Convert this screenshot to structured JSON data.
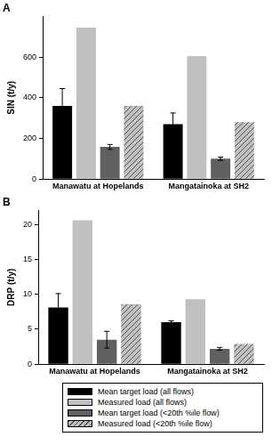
{
  "chart_data": [
    {
      "type": "bar",
      "title": "A",
      "y_label": "SIN (t/y)",
      "categories": [
        "Manawatu at Hopelands",
        "Mangatainoka at SH2"
      ],
      "ylim": [
        0,
        800
      ],
      "yticks": [
        0,
        200,
        400,
        600
      ],
      "grid": false,
      "series": [
        {
          "name": "Mean target load (all flows)",
          "color": "#000000",
          "values": [
            360,
            270
          ],
          "error": [
            85,
            55
          ]
        },
        {
          "name": "Measured load (all flows)",
          "color": "#c0c0c0",
          "values": [
            745,
            605
          ],
          "error": [
            null,
            null
          ]
        },
        {
          "name": "Mean target load (<20th %ile flow)",
          "color": "#606060",
          "values": [
            158,
            100
          ],
          "error": [
            12,
            8
          ]
        },
        {
          "name": "Measured load (<20th %ile flow)",
          "color": "#c0c0c0",
          "line_style": "hatched",
          "values": [
            360,
            280
          ],
          "error": [
            null,
            null
          ]
        }
      ]
    },
    {
      "type": "bar",
      "title": "B",
      "y_label": "DRP (t/y)",
      "categories": [
        "Manawatu at Hopelands",
        "Mangatainoka at SH2"
      ],
      "ylim": [
        0,
        22
      ],
      "yticks": [
        0,
        5,
        10,
        15,
        20
      ],
      "grid": false,
      "legend": "bottom",
      "series": [
        {
          "name": "Mean target load (all flows)",
          "color": "#000000",
          "values": [
            8.1,
            6.0
          ],
          "error": [
            2.0,
            0.2
          ]
        },
        {
          "name": "Measured load (all flows)",
          "color": "#c0c0c0",
          "values": [
            20.6,
            9.3
          ],
          "error": [
            null,
            null
          ]
        },
        {
          "name": "Mean target load (<20th %ile flow)",
          "color": "#606060",
          "values": [
            3.5,
            2.2
          ],
          "error": [
            1.2,
            0.2
          ]
        },
        {
          "name": "Measured load (<20th %ile flow)",
          "color": "#c0c0c0",
          "line_style": "hatched",
          "values": [
            8.6,
            2.9
          ],
          "error": [
            null,
            null
          ]
        }
      ]
    }
  ]
}
